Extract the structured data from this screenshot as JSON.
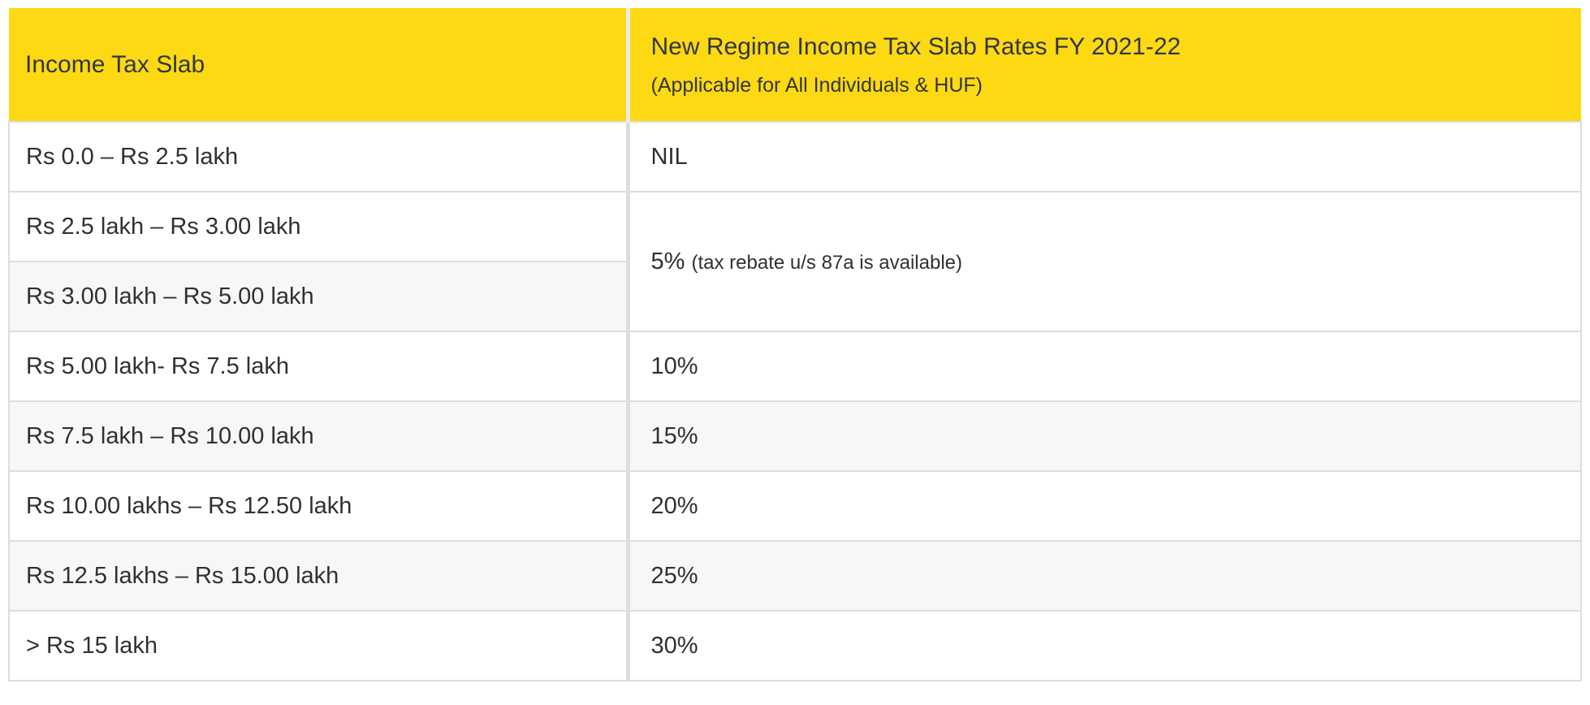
{
  "chart_data": {
    "type": "table",
    "header": {
      "col1": "Income Tax Slab",
      "col2_title": "New Regime Income Tax Slab Rates FY 2021-22",
      "col2_subtitle": "(Applicable for All Individuals & HUF)"
    },
    "rows": [
      {
        "slab": "Rs 0.0 – Rs 2.5 lakh",
        "rate": "NIL"
      },
      {
        "slab": "Rs 2.5 lakh – Rs 3.00 lakh",
        "rate": "5%",
        "rate_note": "(tax rebate u/s 87a is available)",
        "rate_rowspan": 2
      },
      {
        "slab": "Rs 3.00 lakh – Rs 5.00 lakh"
      },
      {
        "slab": "Rs 5.00 lakh- Rs 7.5 lakh",
        "rate": "10%"
      },
      {
        "slab": "Rs 7.5 lakh – Rs 10.00 lakh",
        "rate": "15%"
      },
      {
        "slab": "Rs 10.00 lakhs – Rs 12.50 lakh",
        "rate": "20%"
      },
      {
        "slab": "Rs 12.5 lakhs – Rs 15.00 lakh",
        "rate": "25%"
      },
      {
        "slab": "> Rs 15 lakh",
        "rate": "30%"
      }
    ]
  },
  "colors": {
    "header_bg": "#FCD912",
    "header_divider": "#ECECEC",
    "row_alt_bg": "#F7F7F7",
    "border": "#DDDDDD",
    "text": "#2E3033",
    "header_text": "#33363B"
  }
}
